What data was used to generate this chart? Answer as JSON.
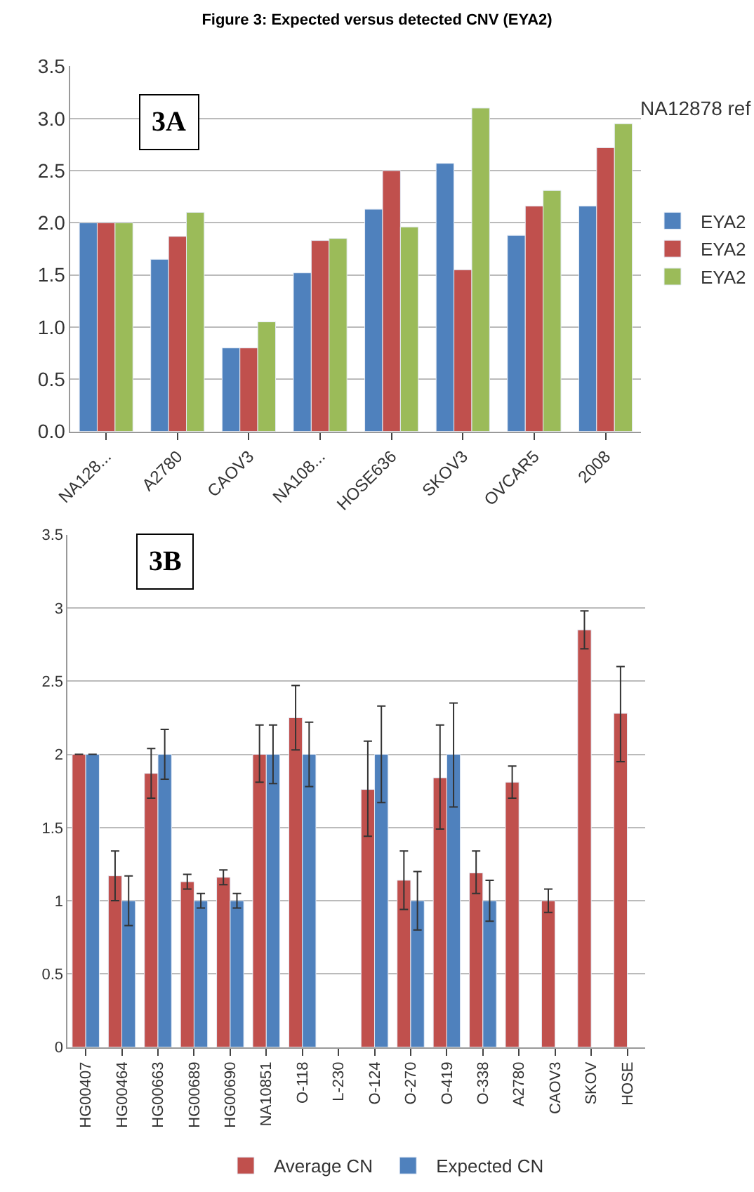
{
  "chart_data": [
    {
      "type": "bar",
      "title": "Figure 3: Expected versus detected CNV (EYA2)",
      "categories": [
        "NA128...",
        "A2780",
        "CAOV3",
        "NA108...",
        "HOSE636",
        "SKOV3",
        "OVCAR5",
        "2008"
      ],
      "series": [
        {
          "name": "EYA2",
          "color": "#4f81bd",
          "values": [
            2.0,
            1.65,
            0.8,
            1.52,
            2.13,
            2.57,
            1.88,
            2.16
          ]
        },
        {
          "name": "EYA2",
          "color": "#c0504d",
          "values": [
            2.0,
            1.87,
            0.8,
            1.83,
            2.5,
            1.55,
            2.16,
            2.72
          ]
        },
        {
          "name": "EYA2",
          "color": "#9bbb59",
          "values": [
            2.0,
            2.1,
            1.05,
            1.85,
            1.96,
            3.1,
            2.31,
            2.95
          ]
        }
      ],
      "ylim": [
        0,
        3.5
      ],
      "yticks": [
        "0.0",
        "0.5",
        "1.0",
        "1.5",
        "2.0",
        "2.5",
        "3.0",
        "3.5"
      ],
      "grid": "y",
      "legend": "right",
      "annotations": [
        "3A",
        "NA12878 ref"
      ]
    },
    {
      "type": "bar",
      "categories": [
        "HG00407",
        "HG00464",
        "HG00663",
        "HG00689",
        "HG00690",
        "NA10851",
        "O-118",
        "L-230",
        "O-124",
        "O-270",
        "O-419",
        "O-338",
        "A2780",
        "CAOV3",
        "SKOV",
        "HOSE"
      ],
      "series": [
        {
          "name": "Average CN",
          "color": "#c0504d",
          "values": [
            2.0,
            1.17,
            1.87,
            1.13,
            1.16,
            2.0,
            2.25,
            null,
            1.76,
            1.14,
            1.84,
            1.19,
            1.81,
            1.0,
            2.85,
            2.28
          ],
          "errors": [
            null,
            [
              1.0,
              1.34
            ],
            [
              1.7,
              2.04
            ],
            [
              1.08,
              1.18
            ],
            [
              1.11,
              1.21
            ],
            [
              1.81,
              2.2
            ],
            [
              2.03,
              2.47
            ],
            null,
            [
              1.44,
              2.09
            ],
            [
              0.94,
              1.34
            ],
            [
              1.49,
              2.2
            ],
            [
              1.05,
              1.34
            ],
            [
              1.7,
              1.92
            ],
            [
              0.92,
              1.08
            ],
            [
              2.72,
              2.98
            ],
            [
              1.95,
              2.6
            ]
          ]
        },
        {
          "name": "Expected CN",
          "color": "#4f81bd",
          "values": [
            2.0,
            1.0,
            2.0,
            1.0,
            1.0,
            2.0,
            2.0,
            null,
            2.0,
            1.0,
            2.0,
            1.0,
            null,
            null,
            null,
            null
          ],
          "errors": [
            null,
            [
              0.83,
              1.17
            ],
            [
              1.83,
              2.17
            ],
            [
              0.95,
              1.05
            ],
            [
              0.95,
              1.05
            ],
            [
              1.8,
              2.2
            ],
            [
              1.78,
              2.22
            ],
            null,
            [
              1.67,
              2.33
            ],
            [
              0.8,
              1.2
            ],
            [
              1.64,
              2.35
            ],
            [
              0.86,
              1.14
            ],
            null,
            null,
            null,
            null
          ]
        }
      ],
      "ylim": [
        0,
        3.5
      ],
      "yticks": [
        0,
        0.5,
        1,
        1.5,
        2,
        2.5,
        3,
        3.5
      ],
      "grid": "y",
      "legend": "bottom",
      "annotations": [
        "3B"
      ]
    }
  ]
}
